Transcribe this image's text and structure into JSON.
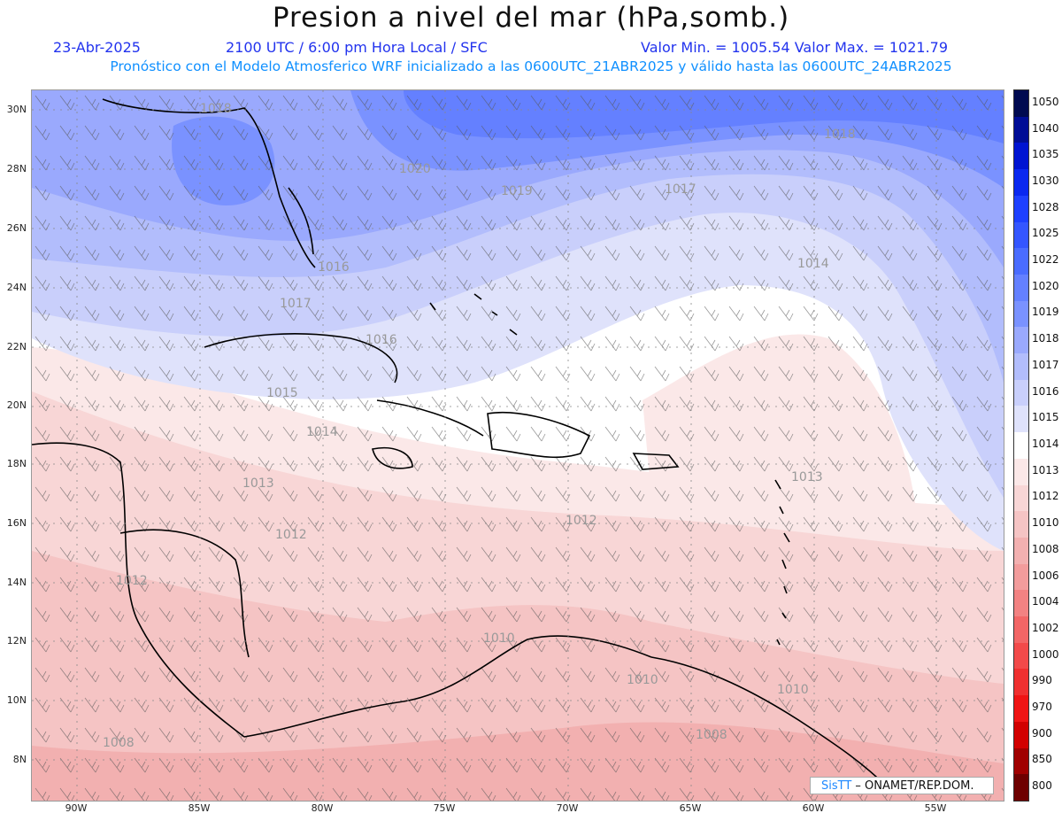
{
  "header": {
    "title": "Presion a nivel del mar (hPa,somb.)",
    "date": "23-Abr-2025",
    "time": "2100 UTC / 6:00 pm Hora Local / SFC",
    "minmax": "Valor Min. = 1005.54  Valor Max. = 1021.79",
    "forecast": "Pronóstico con el Modelo Atmosferico WRF inicializado a las 0600UTC_21ABR2025 y válido hasta las  0600UTC_24ABR2025"
  },
  "axes": {
    "lat_labels": [
      "30N",
      "28N",
      "26N",
      "24N",
      "22N",
      "20N",
      "18N",
      "16N",
      "14N",
      "12N",
      "10N",
      "8N"
    ],
    "lon_labels": [
      "90W",
      "85W",
      "80W",
      "75W",
      "70W",
      "65W",
      "60W",
      "55W"
    ]
  },
  "contour_labels": [
    "1018",
    "1020",
    "1019",
    "1017",
    "1018",
    "1016",
    "1014",
    "1017",
    "1016",
    "1015",
    "1014",
    "1013",
    "1013",
    "1012",
    "1012",
    "1012",
    "1010",
    "1010",
    "1010",
    "1008",
    "1008"
  ],
  "colorbar": {
    "levels": [
      "1050",
      "1040",
      "1035",
      "1030",
      "1028",
      "1025",
      "1022",
      "1020",
      "1019",
      "1018",
      "1017",
      "1016",
      "1015",
      "1014",
      "1013",
      "1012",
      "1010",
      "1008",
      "1006",
      "1004",
      "1002",
      "1000",
      "990",
      "970",
      "900",
      "850",
      "800"
    ],
    "colors": [
      "#000a50",
      "#000d96",
      "#0014d2",
      "#0a28f0",
      "#1e40ff",
      "#3456ff",
      "#4a6cff",
      "#6480ff",
      "#7a92ff",
      "#9aa9fd",
      "#b2bdfc",
      "#c9cffb",
      "#dfe2fb",
      "#ffffff",
      "#fbe8e8",
      "#f8d6d6",
      "#f5c4c4",
      "#f2b0b0",
      "#f29c9c",
      "#f28282",
      "#f26666",
      "#f24a4a",
      "#f03030",
      "#f01414",
      "#d20000",
      "#a00000",
      "#6e0000"
    ]
  },
  "credit": {
    "brand": "SisTT",
    "rest": " – ONAMET/REP.DOM."
  }
}
